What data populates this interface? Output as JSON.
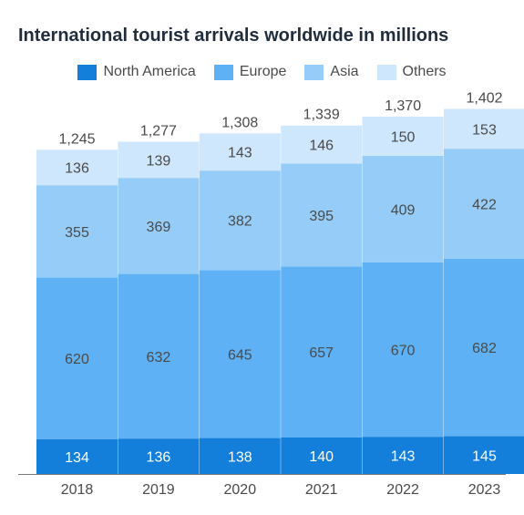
{
  "title": "International tourist arrivals worldwide in millions",
  "colors": {
    "North America": "#137fdb",
    "Europe": "#5eb1f5",
    "Asia": "#95cdf8",
    "Others": "#cfe7fc"
  },
  "chart_data": {
    "type": "bar",
    "stacked": true,
    "title": "International tourist arrivals worldwide in millions",
    "categories": [
      "2018",
      "2019",
      "2020",
      "2021",
      "2022",
      "2023"
    ],
    "series": [
      {
        "name": "North America",
        "values": [
          134,
          136,
          138,
          140,
          143,
          145
        ]
      },
      {
        "name": "Europe",
        "values": [
          620,
          632,
          645,
          657,
          670,
          682
        ]
      },
      {
        "name": "Asia",
        "values": [
          355,
          369,
          382,
          395,
          409,
          422
        ]
      },
      {
        "name": "Others",
        "values": [
          136,
          139,
          143,
          146,
          150,
          153
        ]
      }
    ],
    "totals": [
      "1,245",
      "1,277",
      "1,308",
      "1,339",
      "1,370",
      "1,402"
    ],
    "legend_position": "top",
    "grid": false
  }
}
